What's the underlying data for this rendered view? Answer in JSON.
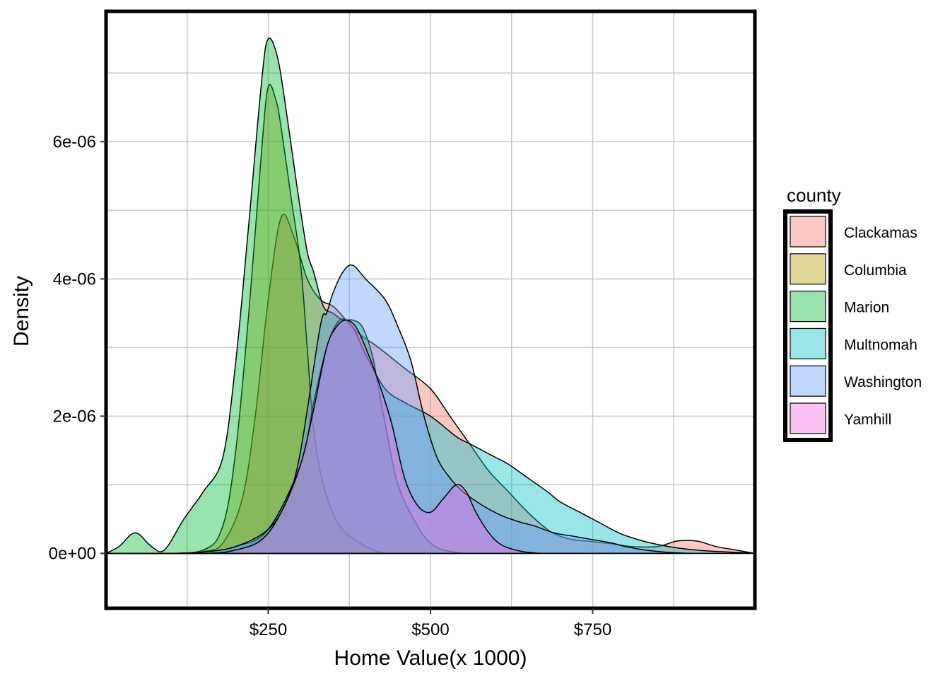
{
  "chart_data": {
    "type": "area",
    "subtype": "density",
    "xlabel": "Home Value(x 1000)",
    "ylabel": "Density",
    "xlim": [
      0,
      1000
    ],
    "ylim": [
      -8e-07,
      7.9e-06
    ],
    "x_ticks": [
      250,
      500,
      750
    ],
    "x_tick_labels": [
      "$250",
      "$500",
      "$750"
    ],
    "y_ticks": [
      0,
      2e-06,
      4e-06,
      6e-06
    ],
    "y_tick_labels": [
      "0e+00",
      "2e-06",
      "4e-06",
      "6e-06"
    ],
    "grid": true,
    "legend": {
      "title": "county",
      "position": "right"
    },
    "fill_opacity": 0.4,
    "series": [
      {
        "name": "Clackamas",
        "color": "#F8766D",
        "points": [
          [
            0,
            0
          ],
          [
            100,
            0
          ],
          [
            150,
            3e-08
          ],
          [
            180,
            1.5e-07
          ],
          [
            210,
            8e-07
          ],
          [
            230,
            2e-06
          ],
          [
            250,
            3.7e-06
          ],
          [
            270,
            4.9e-06
          ],
          [
            290,
            4.6e-06
          ],
          [
            310,
            4e-06
          ],
          [
            330,
            3.7e-06
          ],
          [
            350,
            3.6e-06
          ],
          [
            370,
            3.4e-06
          ],
          [
            390,
            3.2e-06
          ],
          [
            420,
            3e-06
          ],
          [
            460,
            2.7e-06
          ],
          [
            500,
            2.4e-06
          ],
          [
            530,
            2e-06
          ],
          [
            560,
            1.6e-06
          ],
          [
            590,
            1.2e-06
          ],
          [
            620,
            9e-07
          ],
          [
            650,
            6e-07
          ],
          [
            680,
            3.5e-07
          ],
          [
            700,
            2.5e-07
          ],
          [
            720,
            2e-07
          ],
          [
            750,
            1.7e-07
          ],
          [
            780,
            1.4e-07
          ],
          [
            810,
            1e-07
          ],
          [
            850,
            1e-07
          ],
          [
            880,
            1.8e-07
          ],
          [
            910,
            1.8e-07
          ],
          [
            940,
            1e-07
          ],
          [
            970,
            5e-08
          ],
          [
            1000,
            0
          ]
        ]
      },
      {
        "name": "Columbia",
        "color": "#B79F00",
        "points": [
          [
            0,
            0
          ],
          [
            80,
            0
          ],
          [
            150,
            5e-08
          ],
          [
            180,
            4e-07
          ],
          [
            200,
            1.5e-06
          ],
          [
            220,
            3.5e-06
          ],
          [
            240,
            5.9e-06
          ],
          [
            250,
            6.8e-06
          ],
          [
            262,
            6.6e-06
          ],
          [
            270,
            6.2e-06
          ],
          [
            285,
            5.2e-06
          ],
          [
            300,
            4.2e-06
          ],
          [
            310,
            3e-06
          ],
          [
            320,
            1.8e-06
          ],
          [
            335,
            1e-06
          ],
          [
            360,
            4e-07
          ],
          [
            400,
            1e-07
          ],
          [
            430,
            0
          ]
        ]
      },
      {
        "name": "Marion",
        "color": "#00BA38",
        "points": [
          [
            0,
            0
          ],
          [
            20,
            1e-07
          ],
          [
            45,
            3e-07
          ],
          [
            70,
            1e-07
          ],
          [
            90,
            5e-08
          ],
          [
            120,
            5e-07
          ],
          [
            150,
            9e-07
          ],
          [
            180,
            1.4e-06
          ],
          [
            200,
            2.8e-06
          ],
          [
            220,
            4.8e-06
          ],
          [
            240,
            6.9e-06
          ],
          [
            250,
            7.5e-06
          ],
          [
            265,
            7.2e-06
          ],
          [
            280,
            6.3e-06
          ],
          [
            295,
            5.3e-06
          ],
          [
            310,
            4.4e-06
          ],
          [
            320,
            4.1e-06
          ],
          [
            335,
            3.6e-06
          ],
          [
            350,
            3.5e-06
          ],
          [
            365,
            3.4e-06
          ],
          [
            380,
            3.4e-06
          ],
          [
            395,
            3.3e-06
          ],
          [
            410,
            2.9e-06
          ],
          [
            420,
            2.4e-06
          ],
          [
            430,
            1.9e-06
          ],
          [
            450,
            1e-06
          ],
          [
            480,
            4e-07
          ],
          [
            500,
            1.5e-07
          ],
          [
            520,
            5e-08
          ],
          [
            550,
            0
          ]
        ]
      },
      {
        "name": "Multnomah",
        "color": "#00BFC4",
        "points": [
          [
            0,
            0
          ],
          [
            100,
            0
          ],
          [
            150,
            2e-08
          ],
          [
            200,
            1e-07
          ],
          [
            250,
            3.5e-07
          ],
          [
            300,
            1.3e-06
          ],
          [
            320,
            2.2e-06
          ],
          [
            340,
            3e-06
          ],
          [
            360,
            3.4e-06
          ],
          [
            380,
            3.3e-06
          ],
          [
            400,
            2.9e-06
          ],
          [
            430,
            2.4e-06
          ],
          [
            460,
            2.2e-06
          ],
          [
            500,
            2e-06
          ],
          [
            540,
            1.7e-06
          ],
          [
            560,
            1.6e-06
          ],
          [
            580,
            1.5e-06
          ],
          [
            600,
            1.4e-06
          ],
          [
            620,
            1.3e-06
          ],
          [
            650,
            1.1e-06
          ],
          [
            680,
            9e-07
          ],
          [
            700,
            7.5e-07
          ],
          [
            730,
            6e-07
          ],
          [
            760,
            4.5e-07
          ],
          [
            790,
            3e-07
          ],
          [
            820,
            2e-07
          ],
          [
            850,
            1.3e-07
          ],
          [
            880,
            8e-08
          ],
          [
            920,
            4e-08
          ],
          [
            960,
            2e-08
          ],
          [
            1000,
            0
          ]
        ]
      },
      {
        "name": "Washington",
        "color": "#619CFF",
        "points": [
          [
            0,
            0
          ],
          [
            100,
            0
          ],
          [
            150,
            2e-08
          ],
          [
            200,
            1e-07
          ],
          [
            250,
            3.5e-07
          ],
          [
            280,
            8e-07
          ],
          [
            300,
            1.5e-06
          ],
          [
            330,
            3.3e-06
          ],
          [
            340,
            3.5e-06
          ],
          [
            350,
            3.8e-06
          ],
          [
            365,
            4.1e-06
          ],
          [
            380,
            4.2e-06
          ],
          [
            400,
            4e-06
          ],
          [
            430,
            3.7e-06
          ],
          [
            450,
            3.3e-06
          ],
          [
            470,
            2.8e-06
          ],
          [
            490,
            2e-06
          ],
          [
            510,
            1.4e-06
          ],
          [
            530,
            1.1e-06
          ],
          [
            550,
            9e-07
          ],
          [
            580,
            7e-07
          ],
          [
            610,
            5.5e-07
          ],
          [
            640,
            4.5e-07
          ],
          [
            660,
            4e-07
          ],
          [
            690,
            3e-07
          ],
          [
            720,
            2.5e-07
          ],
          [
            750,
            2e-07
          ],
          [
            780,
            1.5e-07
          ],
          [
            800,
            1e-07
          ],
          [
            830,
            5e-08
          ],
          [
            860,
            2e-08
          ],
          [
            900,
            0
          ]
        ]
      },
      {
        "name": "Yamhill",
        "color": "#F564E3",
        "points": [
          [
            0,
            0
          ],
          [
            150,
            0
          ],
          [
            200,
            5e-08
          ],
          [
            240,
            2e-07
          ],
          [
            270,
            6e-07
          ],
          [
            300,
            1.3e-06
          ],
          [
            320,
            2.1e-06
          ],
          [
            340,
            3e-06
          ],
          [
            355,
            3.3e-06
          ],
          [
            370,
            3.4e-06
          ],
          [
            385,
            3.3e-06
          ],
          [
            400,
            3e-06
          ],
          [
            420,
            2.5e-06
          ],
          [
            440,
            1.9e-06
          ],
          [
            460,
            1.1e-06
          ],
          [
            480,
            7e-07
          ],
          [
            500,
            6e-07
          ],
          [
            520,
            8e-07
          ],
          [
            540,
            1e-06
          ],
          [
            555,
            9e-07
          ],
          [
            570,
            6e-07
          ],
          [
            590,
            3e-07
          ],
          [
            610,
            1.2e-07
          ],
          [
            640,
            3e-08
          ],
          [
            670,
            0
          ]
        ]
      }
    ]
  }
}
